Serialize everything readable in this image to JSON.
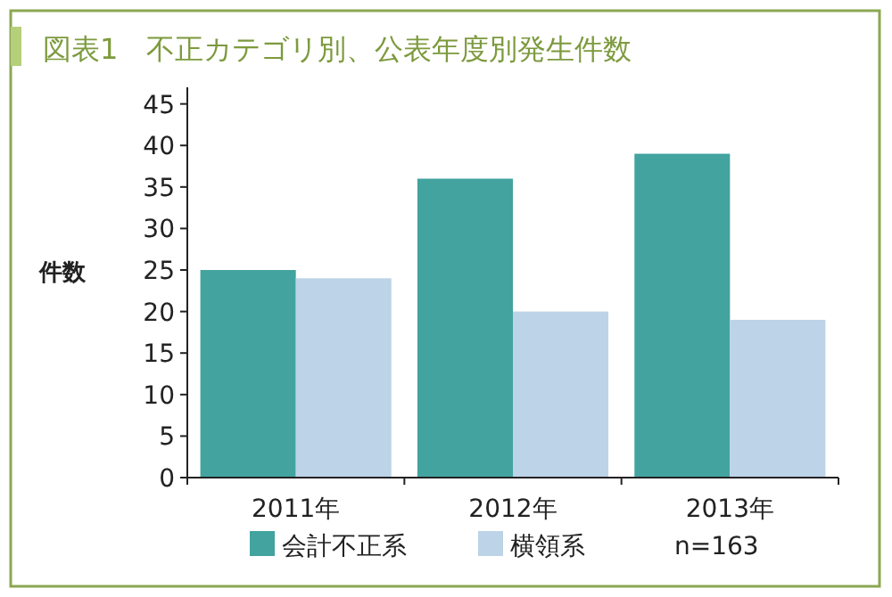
{
  "chart_data": {
    "type": "bar",
    "title": "図表1　不正カテゴリ別、公表年度別発生件数",
    "ylabel": "件数",
    "categories": [
      "2011年",
      "2012年",
      "2013年"
    ],
    "series": [
      {
        "name": "会計不正系",
        "color": "#42a39f",
        "values": [
          25,
          36,
          39
        ]
      },
      {
        "name": "横領系",
        "color": "#bdd3e7",
        "values": [
          24,
          20,
          19
        ]
      }
    ],
    "ylim": [
      0,
      47
    ],
    "yticks": [
      0,
      5,
      10,
      15,
      20,
      25,
      30,
      35,
      40,
      45
    ],
    "grid": false,
    "legend": "bottom",
    "annotations": [
      "n=163"
    ]
  }
}
